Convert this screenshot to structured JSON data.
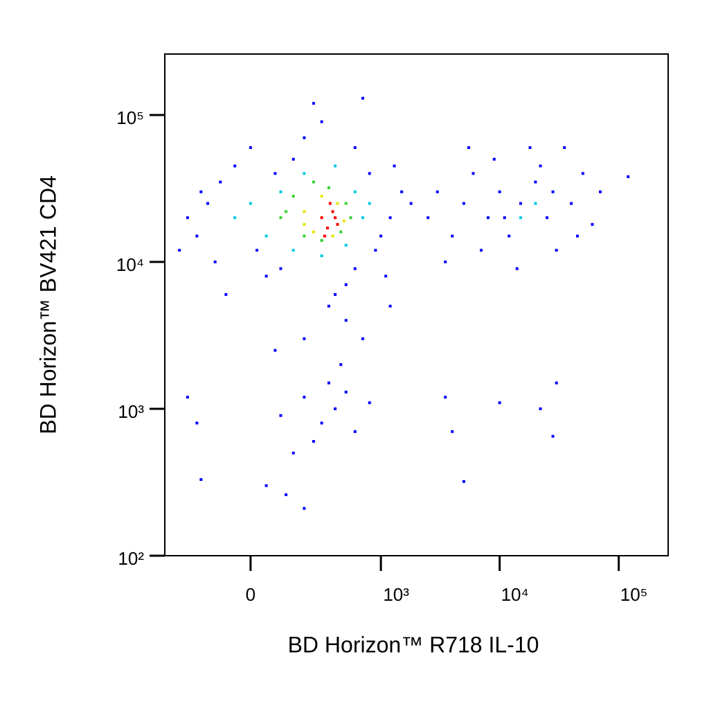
{
  "chart_data": {
    "type": "scatter",
    "x_label": "BD Horizon™ R718 IL-10",
    "y_label": "BD Horizon™ BV421 CD4",
    "xscale": "biexponential",
    "yscale": "log",
    "xlim": [
      -410,
      260000
    ],
    "ylim": [
      100,
      260000
    ],
    "xticks": [
      0,
      {
        "value": 1000,
        "label": "10³"
      },
      {
        "value": 10000,
        "label": "10⁴"
      },
      {
        "value": 100000,
        "label": "10⁵"
      }
    ],
    "yticks": [
      {
        "value": 100,
        "label": "10²"
      },
      {
        "value": 1000,
        "label": "10³"
      },
      {
        "value": 10000,
        "label": "10⁴"
      },
      {
        "value": 100000,
        "label": "10⁵"
      }
    ],
    "series": [
      {
        "color": "#0000ff",
        "x": [
          -200,
          -150,
          -100,
          -250,
          -50,
          0,
          50,
          100,
          150,
          200,
          300,
          400,
          500,
          600,
          800,
          900,
          1200,
          1500,
          1100,
          -300,
          -120,
          20,
          80,
          250,
          700,
          -180,
          1000,
          600,
          350,
          -80,
          1300,
          1800,
          2500,
          3000,
          4000,
          5000,
          6000,
          8000,
          10000,
          12000,
          15000,
          20000,
          25000,
          30000,
          40000,
          50000,
          60000,
          7000,
          9000,
          18000,
          35000,
          3500,
          14000,
          22000,
          45000,
          70000,
          120000,
          5500,
          28000,
          11000,
          100,
          200,
          300,
          400,
          500,
          600,
          250,
          150,
          350,
          450,
          700,
          800,
          -200,
          -180,
          50,
          120,
          200,
          80,
          500,
          3500,
          4000,
          10000,
          22000,
          28000,
          30000,
          5000,
          1200,
          200,
          -250
        ],
        "y": [
          15000,
          25000,
          35000,
          20000,
          45000,
          60000,
          8000,
          9000,
          50000,
          70000,
          90000,
          6000,
          7000,
          60000,
          40000,
          12000,
          20000,
          30000,
          8000,
          12000,
          10000,
          12000,
          40000,
          120000,
          130000,
          30000,
          15000,
          9000,
          5000,
          6000,
          45000,
          25000,
          20000,
          30000,
          15000,
          25000,
          40000,
          20000,
          30000,
          15000,
          25000,
          35000,
          20000,
          12000,
          25000,
          40000,
          18000,
          12000,
          50000,
          60000,
          60000,
          10000,
          9000,
          45000,
          15000,
          30000,
          38000,
          60000,
          30000,
          20000,
          900,
          1200,
          800,
          1000,
          1300,
          700,
          600,
          500,
          1500,
          2000,
          3000,
          1100,
          800,
          330,
          300,
          260,
          210,
          2500,
          4000,
          1200,
          700,
          1100,
          1000,
          650,
          1500,
          320,
          5000,
          3000,
          1200
        ]
      },
      {
        "color": "#00c8e6",
        "x": [
          0,
          50,
          100,
          150,
          200,
          300,
          400,
          500,
          600,
          700,
          -50,
          800,
          20000,
          15000
        ],
        "y": [
          25000,
          15000,
          30000,
          12000,
          40000,
          11000,
          45000,
          13000,
          30000,
          20000,
          20000,
          25000,
          25000,
          20000
        ]
      },
      {
        "color": "#32d232",
        "x": [
          100,
          150,
          200,
          250,
          300,
          350,
          450,
          500,
          550,
          120
        ],
        "y": [
          20000,
          28000,
          15000,
          35000,
          14000,
          32000,
          16000,
          25000,
          20000,
          22000
        ]
      },
      {
        "color": "#e6e600",
        "x": [
          200,
          250,
          300,
          380,
          420,
          480,
          200
        ],
        "y": [
          22000,
          16000,
          28000,
          15000,
          25000,
          19000,
          18000
        ]
      },
      {
        "color": "#ff0000",
        "x": [
          300,
          340,
          380,
          420,
          360,
          320,
          400
        ],
        "y": [
          20000,
          17000,
          22000,
          18000,
          25000,
          15000,
          20000
        ]
      }
    ]
  }
}
